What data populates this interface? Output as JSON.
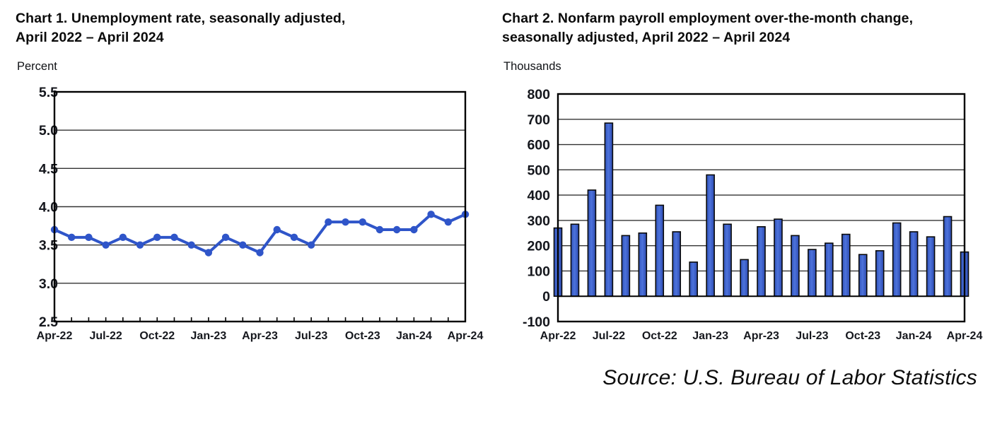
{
  "source_note": "Source: U.S. Bureau of Labor Statistics",
  "chart_data": [
    {
      "type": "line",
      "title_lines": [
        "Chart 1. Unemployment rate, seasonally adjusted,",
        "April 2022 – April 2024"
      ],
      "unit_label": "Percent",
      "x": [
        "Apr-22",
        "May-22",
        "Jun-22",
        "Jul-22",
        "Aug-22",
        "Sep-22",
        "Oct-22",
        "Nov-22",
        "Dec-22",
        "Jan-23",
        "Feb-23",
        "Mar-23",
        "Apr-23",
        "May-23",
        "Jun-23",
        "Jul-23",
        "Aug-23",
        "Sep-23",
        "Oct-23",
        "Nov-23",
        "Dec-23",
        "Jan-24",
        "Feb-24",
        "Mar-24",
        "Apr-24"
      ],
      "values": [
        3.7,
        3.6,
        3.6,
        3.5,
        3.6,
        3.5,
        3.6,
        3.6,
        3.5,
        3.4,
        3.6,
        3.5,
        3.4,
        3.7,
        3.6,
        3.5,
        3.8,
        3.8,
        3.8,
        3.7,
        3.7,
        3.7,
        3.9,
        3.8,
        3.9
      ],
      "ylim": [
        2.5,
        5.5
      ],
      "ytick_step": 0.5,
      "x_tick_labels": [
        "Apr-22",
        "Jul-22",
        "Oct-22",
        "Jan-23",
        "Apr-23",
        "Jul-23",
        "Oct-23",
        "Jan-24",
        "Apr-24"
      ],
      "x_tick_every": 3,
      "grid": true,
      "legend": "none",
      "line_color": "#2f55c9",
      "marker": "circle"
    },
    {
      "type": "bar",
      "title_lines": [
        "Chart 2. Nonfarm payroll employment over-the-month change,",
        "seasonally adjusted, April 2022 – April 2024"
      ],
      "unit_label": "Thousands",
      "x": [
        "Apr-22",
        "May-22",
        "Jun-22",
        "Jul-22",
        "Aug-22",
        "Sep-22",
        "Oct-22",
        "Nov-22",
        "Dec-22",
        "Jan-23",
        "Feb-23",
        "Mar-23",
        "Apr-23",
        "May-23",
        "Jun-23",
        "Jul-23",
        "Aug-23",
        "Sep-23",
        "Oct-23",
        "Nov-23",
        "Dec-23",
        "Jan-24",
        "Feb-24",
        "Mar-24",
        "Apr-24"
      ],
      "values": [
        270,
        285,
        420,
        685,
        240,
        250,
        360,
        255,
        135,
        480,
        285,
        145,
        275,
        305,
        240,
        185,
        210,
        245,
        165,
        180,
        290,
        255,
        235,
        315,
        175
      ],
      "ylim": [
        -100,
        800
      ],
      "ytick_step": 100,
      "x_tick_labels": [
        "Apr-22",
        "Jul-22",
        "Oct-22",
        "Jan-23",
        "Apr-23",
        "Jul-23",
        "Oct-23",
        "Jan-24",
        "Apr-24"
      ],
      "x_tick_every": 3,
      "grid": true,
      "legend": "none",
      "bar_color": "#3b63cc",
      "bar_outline": "#0a0a0a"
    }
  ],
  "style_colors": {
    "grid_line": "#333333",
    "plot_border": "#000000",
    "tick_text": "#15171d"
  }
}
